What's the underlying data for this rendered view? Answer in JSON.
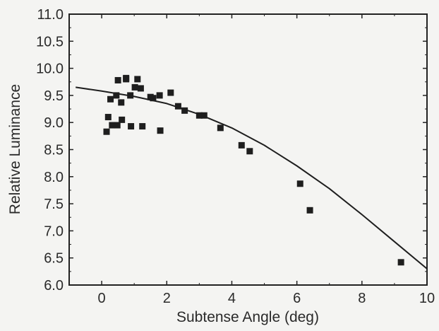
{
  "chart_data": {
    "type": "scatter",
    "title": "",
    "xlabel": "Subtense Angle (deg)",
    "ylabel": "Relative Luminance",
    "xlim": [
      -1,
      10
    ],
    "ylim": [
      6.0,
      11.0
    ],
    "x_ticks": [
      0,
      2,
      4,
      6,
      8,
      10
    ],
    "x_tick_labels": [
      "0",
      "2",
      "4",
      "6",
      "8",
      "10"
    ],
    "y_ticks": [
      6.0,
      6.5,
      7.0,
      7.5,
      8.0,
      8.5,
      9.0,
      9.5,
      10.0,
      10.5,
      11.0
    ],
    "y_tick_labels": [
      "6.0",
      "6.5",
      "7.0",
      "7.5",
      "8.0",
      "8.5",
      "9.0",
      "9.5",
      "10.0",
      "10.5",
      "11.0"
    ],
    "grid": false,
    "marker_color": "#1e1e1e",
    "points": [
      {
        "x": 0.15,
        "y": 8.83
      },
      {
        "x": 0.2,
        "y": 9.1
      },
      {
        "x": 0.27,
        "y": 9.43
      },
      {
        "x": 0.32,
        "y": 8.95
      },
      {
        "x": 0.45,
        "y": 9.5
      },
      {
        "x": 0.48,
        "y": 8.95
      },
      {
        "x": 0.5,
        "y": 9.78
      },
      {
        "x": 0.6,
        "y": 9.37
      },
      {
        "x": 0.62,
        "y": 9.05
      },
      {
        "x": 0.75,
        "y": 9.82
      },
      {
        "x": 0.75,
        "y": 9.8
      },
      {
        "x": 0.88,
        "y": 9.5
      },
      {
        "x": 0.9,
        "y": 8.93
      },
      {
        "x": 1.02,
        "y": 9.65
      },
      {
        "x": 1.1,
        "y": 9.8
      },
      {
        "x": 1.2,
        "y": 9.63
      },
      {
        "x": 1.25,
        "y": 8.93
      },
      {
        "x": 1.5,
        "y": 9.47
      },
      {
        "x": 1.58,
        "y": 9.45
      },
      {
        "x": 1.78,
        "y": 9.5
      },
      {
        "x": 1.8,
        "y": 8.85
      },
      {
        "x": 2.12,
        "y": 9.55
      },
      {
        "x": 2.35,
        "y": 9.3
      },
      {
        "x": 2.55,
        "y": 9.22
      },
      {
        "x": 3.0,
        "y": 9.13
      },
      {
        "x": 3.15,
        "y": 9.13
      },
      {
        "x": 3.65,
        "y": 8.9
      },
      {
        "x": 4.3,
        "y": 8.58
      },
      {
        "x": 4.55,
        "y": 8.47
      },
      {
        "x": 6.1,
        "y": 7.87
      },
      {
        "x": 6.4,
        "y": 7.38
      },
      {
        "x": 9.2,
        "y": 6.42
      }
    ],
    "fit_curve": {
      "x": [
        -0.8,
        0,
        1,
        2,
        3,
        4,
        5,
        6,
        7,
        8,
        9,
        10
      ],
      "y": [
        9.65,
        9.58,
        9.48,
        9.35,
        9.15,
        8.9,
        8.58,
        8.2,
        7.78,
        7.3,
        6.8,
        6.3
      ]
    }
  }
}
